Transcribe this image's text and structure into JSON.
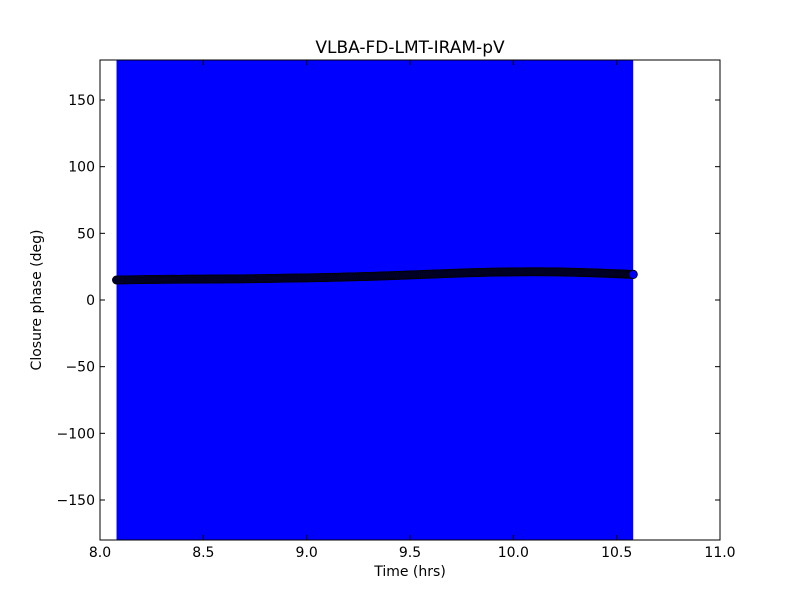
{
  "chart_data": {
    "type": "scatter",
    "title": "VLBA-FD-LMT-IRAM-pV",
    "xlabel": "Time (hrs)",
    "ylabel": "Closure phase (deg)",
    "xlim": [
      8.0,
      11.0
    ],
    "ylim": [
      -180,
      180
    ],
    "xticks": [
      8.0,
      8.5,
      9.0,
      9.5,
      10.0,
      10.5,
      11.0
    ],
    "xtick_labels": [
      "8.0",
      "8.5",
      "9.0",
      "9.5",
      "10.0",
      "10.5",
      "11.0"
    ],
    "yticks": [
      -150,
      -100,
      -50,
      0,
      50,
      100,
      150
    ],
    "ytick_labels": [
      "−150",
      "−100",
      "−50",
      "0",
      "50",
      "100",
      "150"
    ],
    "grid": false,
    "colors": {
      "error_fill": "#0000ff",
      "points": "#000033",
      "marker_edge": "#000000"
    },
    "error_band": {
      "x_start": 8.08,
      "x_end": 10.58,
      "y_low": -180,
      "y_high": 180
    },
    "series": [
      {
        "marker": "circle",
        "x": [
          8.08,
          8.2,
          8.3,
          8.4,
          8.5,
          8.6,
          8.7,
          8.8,
          8.9,
          9.0,
          9.1,
          9.2,
          9.3,
          9.4,
          9.5,
          9.6,
          9.7,
          9.8,
          9.9,
          10.0,
          10.1,
          10.2,
          10.3,
          10.4,
          10.5,
          10.58
        ],
        "y": [
          15.0,
          15.3,
          15.5,
          15.6,
          15.7,
          15.8,
          15.9,
          16.1,
          16.4,
          16.6,
          16.9,
          17.3,
          17.7,
          18.2,
          18.8,
          19.4,
          20.0,
          20.5,
          20.9,
          21.1,
          21.2,
          21.1,
          20.8,
          20.3,
          19.7,
          19.2
        ]
      }
    ]
  }
}
